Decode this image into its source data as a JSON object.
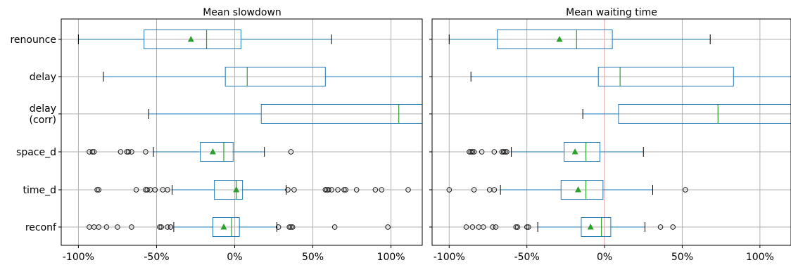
{
  "chart_data": [
    {
      "type": "boxplot",
      "orientation": "horizontal",
      "title": "Mean slowdown",
      "xlim": [
        -111,
        120
      ],
      "xticks": [
        -100,
        -50,
        0,
        50,
        100
      ],
      "xtick_labels": [
        "-100%",
        "-50%",
        "0%",
        "50%",
        "100%"
      ],
      "ytick_labels": [
        "renounce",
        "delay",
        "delay\n(corr)",
        "space_d",
        "time_d",
        "reconf"
      ],
      "grid": true,
      "reference_line": 0,
      "series": [
        {
          "category": "renounce",
          "whisker_low": -100,
          "q1": -58,
          "median": -18,
          "q3": 4,
          "whisker_high": 62,
          "mean": -28,
          "outliers": []
        },
        {
          "category": "delay",
          "whisker_low": -84,
          "q1": -6,
          "median": 8,
          "q3": 58,
          "whisker_high": 125,
          "mean": null,
          "outliers": []
        },
        {
          "category": "delay\n(corr)",
          "whisker_low": -55,
          "q1": 17,
          "median": 105,
          "q3": 125,
          "whisker_high": 125,
          "mean": null,
          "outliers": []
        },
        {
          "category": "space_d",
          "whisker_low": -52,
          "q1": -22,
          "median": -7,
          "q3": -1,
          "whisker_high": 19,
          "mean": -14,
          "outliers": [
            -93,
            -91,
            -90,
            -73,
            -69,
            -68,
            -66,
            -57,
            36
          ]
        },
        {
          "category": "time_d",
          "whisker_low": -40,
          "q1": -13,
          "median": 1,
          "q3": 5,
          "whisker_high": 33,
          "mean": 1,
          "outliers": [
            -88,
            -87,
            -63,
            -57,
            -56,
            -54,
            -51,
            -46,
            -43,
            34,
            38,
            58,
            59,
            60,
            62,
            66,
            70,
            71,
            78,
            90,
            94,
            111
          ]
        },
        {
          "category": "reconf",
          "whisker_low": -39,
          "q1": -14,
          "median": -2,
          "q3": 3,
          "whisker_high": 27,
          "mean": -7,
          "outliers": [
            -93,
            -90,
            -87,
            -82,
            -75,
            -66,
            -48,
            -47,
            -43,
            -41,
            28,
            35,
            36,
            37,
            64,
            98
          ]
        }
      ]
    },
    {
      "type": "boxplot",
      "orientation": "horizontal",
      "title": "Mean waiting time",
      "xlim": [
        -111,
        120
      ],
      "xticks": [
        -100,
        -50,
        0,
        50,
        100
      ],
      "xtick_labels": [
        "-100%",
        "-50%",
        "0%",
        "50%",
        "100%"
      ],
      "ytick_labels": [],
      "grid": true,
      "reference_line": 0,
      "series": [
        {
          "category": "renounce",
          "whisker_low": -100,
          "q1": -69,
          "median": -18,
          "q3": 5,
          "whisker_high": 68,
          "mean": -29,
          "outliers": []
        },
        {
          "category": "delay",
          "whisker_low": -86,
          "q1": -4,
          "median": 10,
          "q3": 83,
          "whisker_high": 125,
          "mean": null,
          "outliers": []
        },
        {
          "category": "delay\n(corr)",
          "whisker_low": -14,
          "q1": 9,
          "median": 73,
          "q3": 125,
          "whisker_high": 125,
          "mean": null,
          "outliers": []
        },
        {
          "category": "space_d",
          "whisker_low": -60,
          "q1": -26,
          "median": -12,
          "q3": -3,
          "whisker_high": 25,
          "mean": -19,
          "outliers": [
            -87,
            -86,
            -85,
            -84,
            -79,
            -71,
            -66,
            -65,
            -64,
            -63
          ]
        },
        {
          "category": "time_d",
          "whisker_low": -67,
          "q1": -28,
          "median": -12,
          "q3": -1,
          "whisker_high": 31,
          "mean": -17,
          "outliers": [
            -100,
            -84,
            -74,
            -71,
            52
          ]
        },
        {
          "category": "reconf",
          "whisker_low": -43,
          "q1": -15,
          "median": -2,
          "q3": 4,
          "whisker_high": 26,
          "mean": -9,
          "outliers": [
            -89,
            -85,
            -81,
            -78,
            -72,
            -70,
            -57,
            -56,
            -50,
            -49,
            36,
            44
          ]
        }
      ]
    }
  ],
  "colors": {
    "box": "#1f77b4",
    "median": "#2ca02c",
    "mean_marker": "#2ca02c",
    "reference_line": "#ff9999",
    "grid": "#b0b0b0",
    "outlier": "#000000"
  }
}
